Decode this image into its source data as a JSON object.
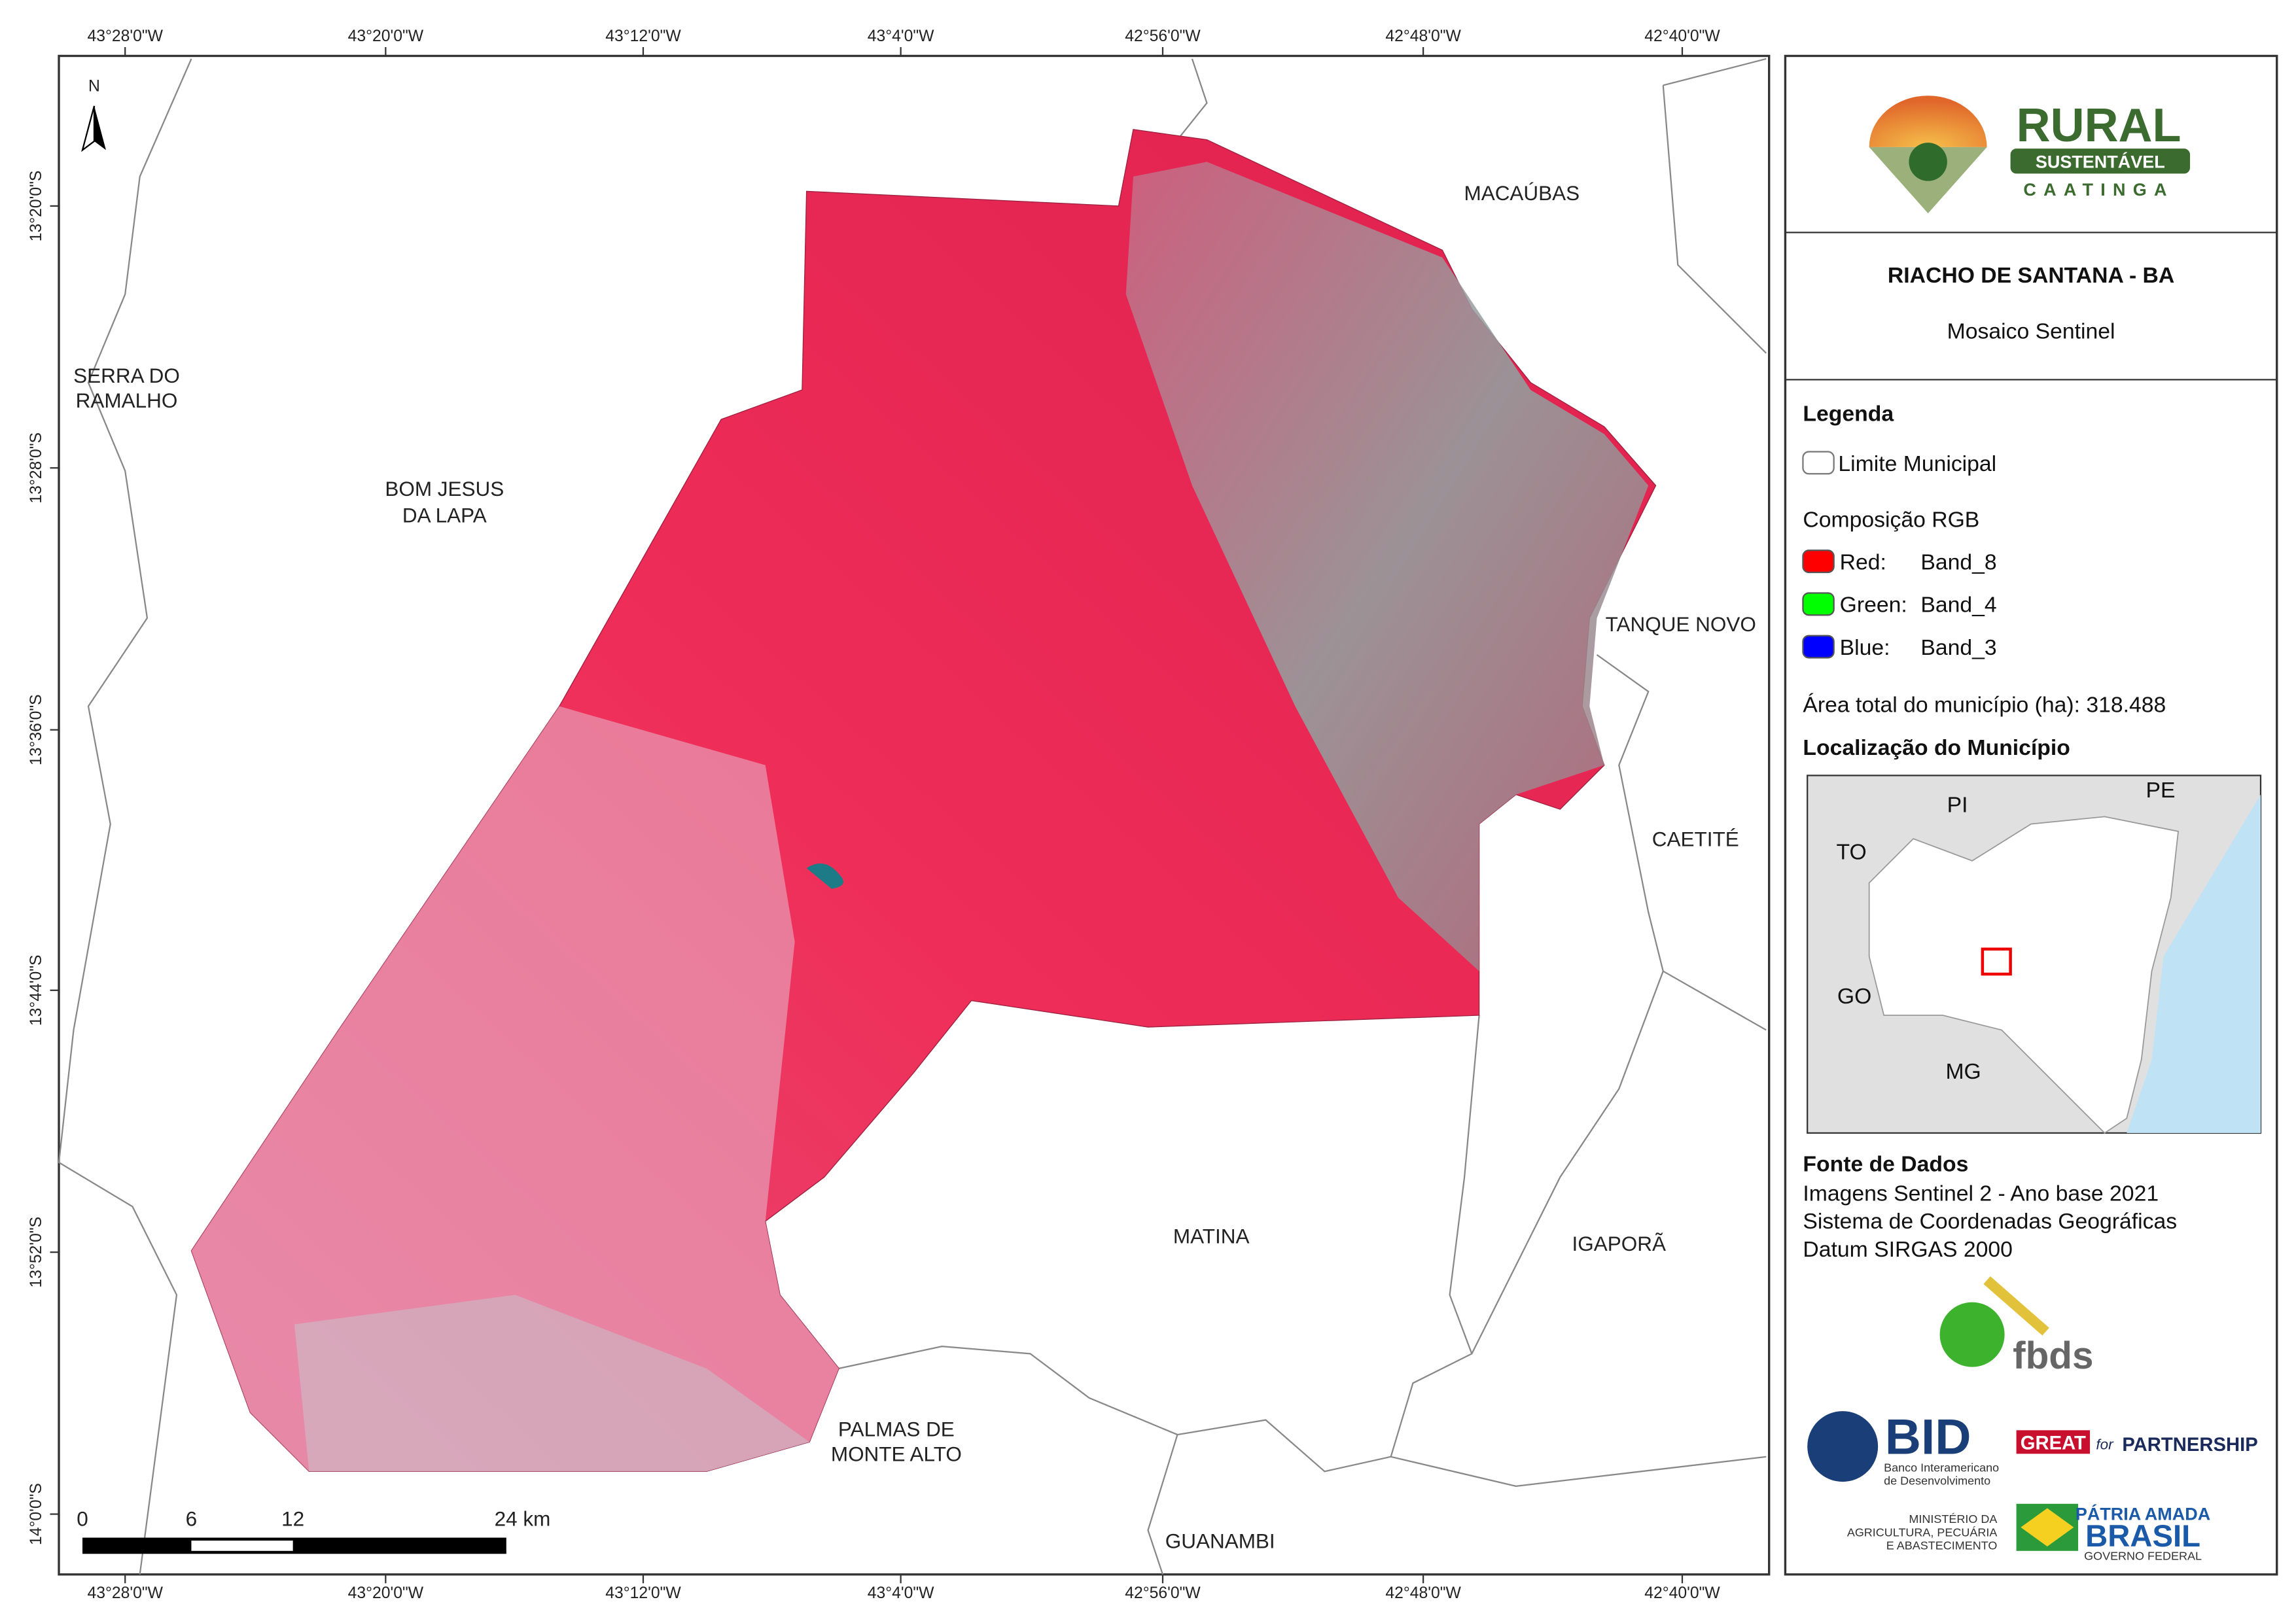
{
  "map": {
    "top_labels": [
      "43°28'0\"W",
      "43°20'0\"W",
      "43°12'0\"W",
      "43°4'0\"W",
      "42°56'0\"W",
      "42°48'0\"W",
      "42°40'0\"W"
    ],
    "bottom_labels": [
      "43°28'0\"W",
      "43°20'0\"W",
      "43°12'0\"W",
      "43°4'0\"W",
      "42°56'0\"W",
      "42°48'0\"W",
      "42°40'0\"W"
    ],
    "left_labels": [
      "13°20'0\"S",
      "13°28'0\"S",
      "13°36'0\"S",
      "13°44'0\"S",
      "13°52'0\"S",
      "14°0'0\"S"
    ],
    "north": "N",
    "places": [
      {
        "lines": [
          "MACAÚBAS"
        ]
      },
      {
        "lines": [
          "SERRA DO",
          "RAMALHO"
        ]
      },
      {
        "lines": [
          "BOM JESUS",
          "DA LAPA"
        ]
      },
      {
        "lines": [
          "TANQUE NOVO"
        ]
      },
      {
        "lines": [
          "CAETITÉ"
        ]
      },
      {
        "lines": [
          "MATINA"
        ]
      },
      {
        "lines": [
          "IGAPORÃ"
        ]
      },
      {
        "lines": [
          "PALMAS DE",
          "MONTE ALTO"
        ]
      },
      {
        "lines": [
          "GUANAMBI"
        ]
      }
    ],
    "scale_labels": [
      "0",
      "6",
      "12",
      "24 km"
    ]
  },
  "panel": {
    "logo": {
      "line1": "RURAL",
      "line2": "SUSTENTÁVEL",
      "line3": "CAATINGA"
    },
    "title": "RIACHO DE SANTANA - BA",
    "subtitle": "Mosaico Sentinel",
    "legend": {
      "title": "Legenda",
      "boundary": "Limite Municipal",
      "rgb_title": "Composição RGB",
      "bands": [
        {
          "channel": "Red:",
          "band": "Band_8",
          "color": "#ff0000"
        },
        {
          "channel": "Green:",
          "band": "Band_4",
          "color": "#00ff00"
        },
        {
          "channel": "Blue:",
          "band": "Band_3",
          "color": "#0000ff"
        }
      ]
    },
    "area": "Área total do município (ha): 318.488",
    "location_title": "Localização do Município",
    "inset_labels": [
      "PI",
      "PE",
      "TO",
      "GO",
      "MG"
    ],
    "sources": {
      "title": "Fonte de Dados",
      "lines": [
        "Imagens Sentinel 2 - Ano base 2021",
        "Sistema de Coordenadas Geográficas",
        "Datum SIRGAS 2000"
      ]
    },
    "logos": {
      "fbds": "fbds",
      "bid": "BID",
      "bid_sub": [
        "Banco Interamericano",
        "de Desenvolvimento"
      ],
      "great": "GREAT",
      "for": "for",
      "partnership": "PARTNERSHIP",
      "ministry": [
        "MINISTÉRIO DA",
        "AGRICULTURA, PECUÁRIA",
        "E ABASTECIMENTO"
      ],
      "patria": "PÁTRIA AMADA",
      "brasil": "BRASIL",
      "gov": "GOVERNO FEDERAL"
    }
  }
}
